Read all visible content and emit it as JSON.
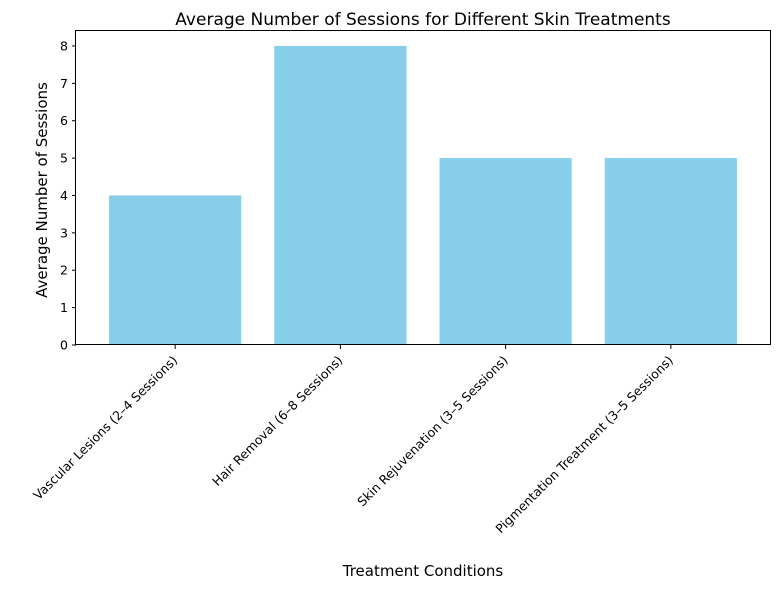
{
  "chart_data": {
    "type": "bar",
    "title": "Average Number of Sessions for Different Skin Treatments",
    "xlabel": "Treatment Conditions",
    "ylabel": "Average Number of Sessions",
    "categories": [
      "Vascular Lesions (2–4 Sessions)",
      "Hair Removal (6–8 Sessions)",
      "Skin Rejuvenation (3–5 Sessions)",
      "Pigmentation Treatment (3–5 Sessions)"
    ],
    "values": [
      4,
      8,
      5,
      5
    ],
    "ylim": [
      0,
      8.4
    ],
    "yticks": [
      "0",
      "1",
      "2",
      "3",
      "4",
      "5",
      "6",
      "7",
      "8"
    ],
    "bar_color": "#87ceeb",
    "grid": false,
    "legend": "none"
  }
}
